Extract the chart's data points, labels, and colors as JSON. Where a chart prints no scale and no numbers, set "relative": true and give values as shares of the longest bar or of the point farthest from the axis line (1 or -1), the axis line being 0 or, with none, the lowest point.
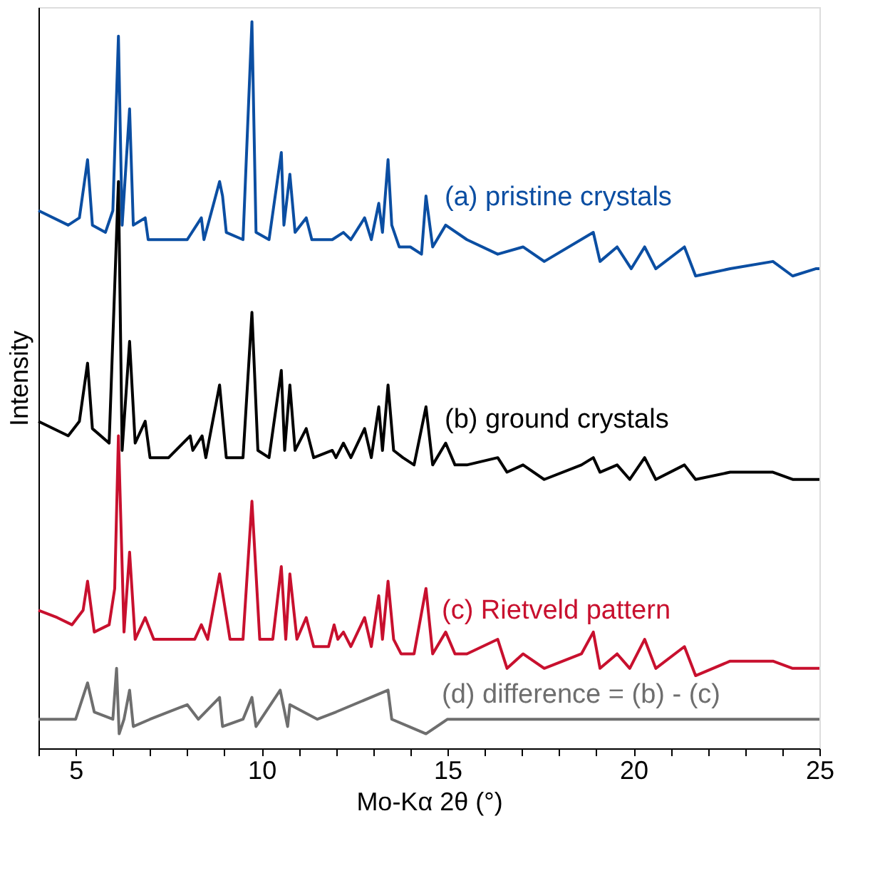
{
  "chart_data": {
    "type": "line",
    "relative": true,
    "xlabel": "Mo-Kα 2θ (°)",
    "ylabel": "Intensity",
    "xlim": [
      4,
      25
    ],
    "xticks": [
      {
        "value": 4,
        "label": null
      },
      5,
      {
        "value": 6,
        "label": null
      },
      {
        "value": 7,
        "label": null
      },
      {
        "value": 8,
        "label": null
      },
      {
        "value": 9,
        "label": null
      },
      10,
      {
        "value": 11,
        "label": null
      },
      {
        "value": 12,
        "label": null
      },
      {
        "value": 13,
        "label": null
      },
      {
        "value": 14,
        "label": null
      },
      15,
      {
        "value": 16,
        "label": null
      },
      {
        "value": 17,
        "label": null
      },
      {
        "value": 18,
        "label": null
      },
      {
        "value": 19,
        "label": null
      },
      20,
      {
        "value": 21,
        "label": null
      },
      {
        "value": 22,
        "label": null
      },
      {
        "value": 23,
        "label": null
      },
      {
        "value": 24,
        "label": null
      },
      25
    ],
    "grid": false,
    "series": [
      {
        "name": "(a) pristine crystals",
        "color": "#0b4ea2",
        "x": [
          4.0,
          4.8,
          5.1,
          5.32,
          5.45,
          5.8,
          6.0,
          6.15,
          6.25,
          6.45,
          6.55,
          6.87,
          6.95,
          7.5,
          8.0,
          8.38,
          8.45,
          8.87,
          8.95,
          9.05,
          9.5,
          9.74,
          9.85,
          10.2,
          10.53,
          10.6,
          10.76,
          10.9,
          11.2,
          11.35,
          11.9,
          12.2,
          12.4,
          12.77,
          12.95,
          13.15,
          13.25,
          13.4,
          13.5,
          13.7,
          14.0,
          14.3,
          14.42,
          14.6,
          14.95,
          15.52,
          16.35,
          17.03,
          17.6,
          18.92,
          19.1,
          19.56,
          19.94,
          20.3,
          20.6,
          21.37,
          21.67,
          22.6,
          23.75,
          24.28,
          24.9,
          25.0
        ],
        "values": [
          0.74,
          0.72,
          0.73,
          0.81,
          0.72,
          0.71,
          0.74,
          0.98,
          0.72,
          0.88,
          0.72,
          0.73,
          0.7,
          0.7,
          0.7,
          0.73,
          0.7,
          0.78,
          0.76,
          0.71,
          0.7,
          1.0,
          0.71,
          0.7,
          0.82,
          0.72,
          0.79,
          0.71,
          0.73,
          0.7,
          0.7,
          0.71,
          0.7,
          0.73,
          0.7,
          0.75,
          0.71,
          0.81,
          0.72,
          0.69,
          0.69,
          0.68,
          0.76,
          0.69,
          0.72,
          0.7,
          0.68,
          0.69,
          0.67,
          0.71,
          0.67,
          0.69,
          0.66,
          0.69,
          0.66,
          0.69,
          0.65,
          0.66,
          0.67,
          0.65,
          0.66,
          0.66
        ]
      },
      {
        "name": "(b) ground crystals",
        "color": "#000000",
        "x": [
          4.0,
          4.8,
          5.1,
          5.32,
          5.45,
          5.9,
          6.15,
          6.25,
          6.45,
          6.6,
          6.87,
          7.0,
          7.5,
          8.08,
          8.15,
          8.4,
          8.5,
          8.87,
          9.05,
          9.5,
          9.74,
          9.9,
          10.2,
          10.53,
          10.62,
          10.76,
          10.9,
          11.2,
          11.4,
          11.9,
          12.0,
          12.2,
          12.4,
          12.77,
          12.95,
          13.15,
          13.25,
          13.4,
          13.55,
          13.8,
          14.1,
          14.42,
          14.6,
          14.95,
          15.2,
          15.52,
          16.35,
          16.6,
          17.03,
          17.6,
          18.6,
          18.92,
          19.1,
          19.56,
          19.9,
          20.3,
          20.6,
          21.37,
          21.67,
          22.6,
          23.75,
          24.28,
          25.0
        ],
        "values": [
          0.45,
          0.43,
          0.45,
          0.53,
          0.44,
          0.42,
          0.78,
          0.41,
          0.56,
          0.42,
          0.45,
          0.4,
          0.4,
          0.43,
          0.41,
          0.43,
          0.4,
          0.5,
          0.4,
          0.4,
          0.6,
          0.41,
          0.4,
          0.52,
          0.41,
          0.5,
          0.41,
          0.44,
          0.4,
          0.41,
          0.4,
          0.42,
          0.4,
          0.44,
          0.4,
          0.47,
          0.41,
          0.5,
          0.41,
          0.4,
          0.39,
          0.47,
          0.39,
          0.42,
          0.39,
          0.39,
          0.4,
          0.38,
          0.39,
          0.37,
          0.39,
          0.4,
          0.38,
          0.39,
          0.37,
          0.4,
          0.37,
          0.39,
          0.37,
          0.38,
          0.38,
          0.37,
          0.37
        ]
      },
      {
        "name": "(c) Rietveld pattern",
        "color": "#c8102e",
        "x": [
          4.0,
          4.5,
          4.9,
          5.2,
          5.32,
          5.5,
          5.9,
          6.05,
          6.15,
          6.3,
          6.45,
          6.6,
          6.87,
          7.1,
          8.0,
          8.2,
          8.38,
          8.55,
          8.87,
          9.15,
          9.5,
          9.74,
          9.95,
          10.3,
          10.53,
          10.65,
          10.76,
          10.95,
          11.2,
          11.4,
          11.8,
          11.95,
          12.05,
          12.2,
          12.4,
          12.77,
          12.95,
          13.15,
          13.25,
          13.4,
          13.55,
          13.75,
          14.1,
          14.42,
          14.6,
          14.95,
          15.2,
          15.52,
          16.35,
          16.6,
          17.03,
          17.6,
          18.6,
          18.92,
          19.1,
          19.56,
          19.9,
          20.3,
          20.6,
          21.37,
          21.67,
          22.6,
          23.75,
          24.28,
          25.0
        ],
        "values": [
          0.19,
          0.18,
          0.17,
          0.19,
          0.23,
          0.16,
          0.17,
          0.22,
          0.43,
          0.16,
          0.27,
          0.15,
          0.18,
          0.15,
          0.15,
          0.15,
          0.17,
          0.15,
          0.24,
          0.15,
          0.15,
          0.34,
          0.15,
          0.15,
          0.25,
          0.15,
          0.24,
          0.15,
          0.18,
          0.14,
          0.14,
          0.17,
          0.15,
          0.16,
          0.14,
          0.18,
          0.14,
          0.21,
          0.15,
          0.23,
          0.15,
          0.13,
          0.13,
          0.22,
          0.13,
          0.16,
          0.13,
          0.13,
          0.15,
          0.11,
          0.13,
          0.11,
          0.13,
          0.16,
          0.11,
          0.13,
          0.11,
          0.15,
          0.11,
          0.14,
          0.1,
          0.12,
          0.12,
          0.11,
          0.11
        ]
      },
      {
        "name": "(d) difference = (b) - (c)",
        "color": "#6e6e6e",
        "x": [
          4.0,
          5.0,
          5.32,
          5.5,
          6.0,
          6.1,
          6.17,
          6.3,
          6.45,
          6.55,
          7.0,
          8.0,
          8.3,
          8.87,
          8.95,
          9.5,
          9.74,
          9.85,
          10.5,
          10.7,
          10.76,
          11.5,
          12.0,
          13.4,
          13.5,
          14.42,
          15.0,
          17.0,
          20.3,
          25.0
        ],
        "values": [
          0.04,
          0.04,
          0.09,
          0.05,
          0.04,
          0.11,
          0.02,
          0.04,
          0.08,
          0.03,
          0.04,
          0.06,
          0.04,
          0.07,
          0.03,
          0.04,
          0.07,
          0.03,
          0.08,
          0.03,
          0.06,
          0.04,
          0.05,
          0.08,
          0.04,
          0.02,
          0.04,
          0.04,
          0.04,
          0.04
        ]
      }
    ]
  }
}
